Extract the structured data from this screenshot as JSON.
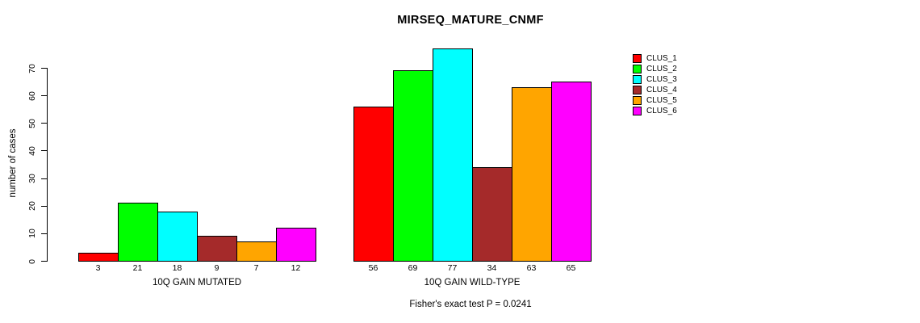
{
  "chart_data": {
    "type": "bar",
    "title": "MIRSEQ_MATURE_CNMF",
    "ylabel": "number of cases",
    "xlabel": "",
    "ylim": [
      0,
      70
    ],
    "yticks": [
      0,
      10,
      20,
      30,
      40,
      50,
      60,
      70
    ],
    "grid": false,
    "legend_position": "right",
    "series": [
      {
        "name": "CLUS_1",
        "color": "#ff0000"
      },
      {
        "name": "CLUS_2",
        "color": "#00ff00"
      },
      {
        "name": "CLUS_3",
        "color": "#00ffff"
      },
      {
        "name": "CLUS_4",
        "color": "#a52a2a"
      },
      {
        "name": "CLUS_5",
        "color": "#ffa500"
      },
      {
        "name": "CLUS_6",
        "color": "#ff00ff"
      }
    ],
    "groups": [
      {
        "label": "10Q GAIN MUTATED",
        "values": [
          3,
          21,
          18,
          9,
          7,
          12
        ]
      },
      {
        "label": "10Q GAIN WILD-TYPE",
        "values": [
          56,
          69,
          77,
          34,
          63,
          65
        ]
      }
    ],
    "annotation": "Fisher's exact test P = 0.0241"
  }
}
